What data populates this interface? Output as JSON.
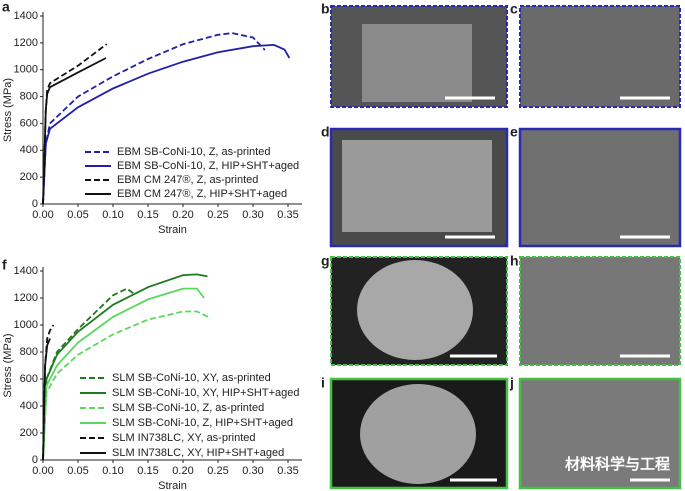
{
  "chart_data": [
    {
      "type": "line",
      "panel_label": "a",
      "x_label": "Strain",
      "y_label": "Stress (MPa)",
      "xlim": [
        0,
        0.37
      ],
      "ylim": [
        0,
        1400
      ],
      "xticks": [
        {
          "value": 0,
          "label": "0.00"
        },
        {
          "value": 0.05,
          "label": "0.05"
        },
        {
          "value": 0.1,
          "label": "0.10"
        },
        {
          "value": 0.15,
          "label": "0.15"
        },
        {
          "value": 0.2,
          "label": "0.20"
        },
        {
          "value": 0.25,
          "label": "0.25"
        },
        {
          "value": 0.3,
          "label": "0.30"
        },
        {
          "value": 0.35,
          "label": "0.35"
        }
      ],
      "yticks": [
        0,
        200,
        400,
        600,
        800,
        1000,
        1200,
        1400
      ],
      "legend": "lower right",
      "series": [
        {
          "name": "EBM SB-CoNi-10, Z, as-printed",
          "color": "#1f1fa8",
          "dashed": true,
          "x": [
            0,
            0.004,
            0.01,
            0.05,
            0.1,
            0.15,
            0.2,
            0.25,
            0.27,
            0.3,
            0.317
          ],
          "values": [
            0,
            450,
            600,
            800,
            950,
            1080,
            1190,
            1260,
            1273,
            1240,
            1147
          ]
        },
        {
          "name": "EBM SB-CoNi-10, Z, HIP+SHT+aged",
          "color": "#1f1fa8",
          "dashed": false,
          "x": [
            0,
            0.004,
            0.01,
            0.05,
            0.1,
            0.15,
            0.2,
            0.25,
            0.3,
            0.33,
            0.345,
            0.352
          ],
          "values": [
            0,
            450,
            560,
            720,
            860,
            970,
            1060,
            1130,
            1175,
            1185,
            1150,
            1087
          ]
        },
        {
          "name": "EBM CM 247®, Z, as-printed",
          "color": "#111111",
          "dashed": true,
          "x": [
            0,
            0.004,
            0.006,
            0.01,
            0.05,
            0.091
          ],
          "values": [
            0,
            700,
            850,
            900,
            1030,
            1191
          ]
        },
        {
          "name": "EBM CM 247®, Z, HIP+SHT+aged",
          "color": "#111111",
          "dashed": false,
          "x": [
            0,
            0.004,
            0.006,
            0.01,
            0.05,
            0.09
          ],
          "values": [
            0,
            700,
            820,
            870,
            980,
            1087
          ]
        }
      ]
    },
    {
      "type": "line",
      "panel_label": "f",
      "x_label": "Strain",
      "y_label": "Stress (MPa)",
      "xlim": [
        0,
        0.37
      ],
      "ylim": [
        0,
        1400
      ],
      "xticks": [
        {
          "value": 0,
          "label": "0.00"
        },
        {
          "value": 0.05,
          "label": "0.05"
        },
        {
          "value": 0.1,
          "label": "0.10"
        },
        {
          "value": 0.15,
          "label": "0.15"
        },
        {
          "value": 0.2,
          "label": "0.20"
        },
        {
          "value": 0.25,
          "label": "0.25"
        },
        {
          "value": 0.3,
          "label": "0.30"
        },
        {
          "value": 0.35,
          "label": "0.35"
        }
      ],
      "yticks": [
        0,
        200,
        400,
        600,
        800,
        1000,
        1200,
        1400
      ],
      "legend": "lower right",
      "series": [
        {
          "name": "SLM SB-CoNi-10, XY, as-printed",
          "color": "#1e7a1e",
          "dashed": true,
          "x": [
            0,
            0.005,
            0.02,
            0.05,
            0.08,
            0.1,
            0.12,
            0.129
          ],
          "values": [
            0,
            600,
            800,
            970,
            1120,
            1220,
            1270,
            1235
          ]
        },
        {
          "name": "SLM SB-CoNi-10, XY, HIP+SHT+aged",
          "color": "#1e7a1e",
          "dashed": false,
          "x": [
            0,
            0.005,
            0.02,
            0.05,
            0.1,
            0.15,
            0.2,
            0.22,
            0.235
          ],
          "values": [
            0,
            600,
            780,
            950,
            1150,
            1280,
            1370,
            1375,
            1360
          ]
        },
        {
          "name": "SLM SB-CoNi-10, Z, as-printed",
          "color": "#5cd65c",
          "dashed": true,
          "x": [
            0,
            0.005,
            0.02,
            0.05,
            0.1,
            0.15,
            0.2,
            0.22,
            0.24
          ],
          "values": [
            0,
            500,
            640,
            780,
            930,
            1040,
            1100,
            1100,
            1050
          ]
        },
        {
          "name": "SLM SB-CoNi-10, Z, HIP+SHT+aged",
          "color": "#5cd65c",
          "dashed": false,
          "x": [
            0,
            0.005,
            0.02,
            0.05,
            0.1,
            0.15,
            0.2,
            0.22,
            0.23
          ],
          "values": [
            0,
            550,
            700,
            870,
            1060,
            1190,
            1270,
            1270,
            1200
          ]
        },
        {
          "name": "SLM IN738LC, XY, as-printed",
          "color": "#111111",
          "dashed": true,
          "x": [
            0,
            0.003,
            0.006,
            0.01,
            0.015
          ],
          "values": [
            0,
            700,
            900,
            960,
            1000
          ]
        },
        {
          "name": "SLM IN738LC, XY, HIP+SHT+aged",
          "color": "#111111",
          "dashed": false,
          "x": [
            0,
            0.003,
            0.006,
            0.01
          ],
          "values": [
            0,
            700,
            850,
            900
          ]
        }
      ]
    }
  ],
  "panels": [
    {
      "label": "b"
    },
    {
      "label": "c"
    },
    {
      "label": "d"
    },
    {
      "label": "e"
    },
    {
      "label": "g"
    },
    {
      "label": "h"
    },
    {
      "label": "i"
    },
    {
      "label": "j"
    }
  ],
  "watermark": "材料科学与工程"
}
